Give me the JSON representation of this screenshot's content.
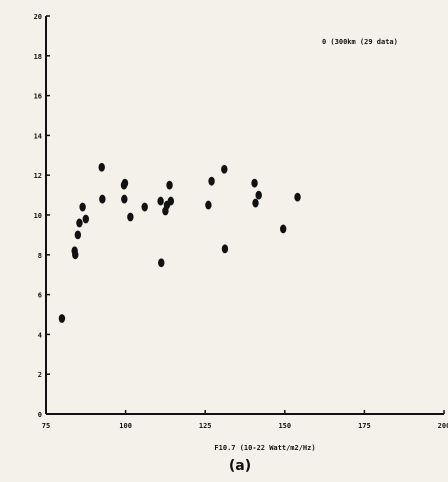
{
  "chart_data": {
    "type": "scatter",
    "title": "",
    "panel_label": "(a)",
    "xlabel": "F10.7 (10-22 Watt/m2/Hz)",
    "ylabel": "",
    "xlim": [
      75,
      200
    ],
    "ylim": [
      0,
      20
    ],
    "x_ticks": [
      "75",
      "100",
      "125",
      "150",
      "175",
      "200"
    ],
    "y_ticks": [
      "0",
      "2",
      "4",
      "6",
      "8",
      "10",
      "12",
      "14",
      "16",
      "18",
      "20"
    ],
    "grid": false,
    "legend_position": "top-right",
    "series": [
      {
        "name": "0 (300km (29 data)",
        "color": "#111111",
        "points": [
          [
            80,
            4.8
          ],
          [
            84,
            8.2
          ],
          [
            84.2,
            8.0
          ],
          [
            85,
            9.0
          ],
          [
            85.5,
            9.6
          ],
          [
            86.5,
            10.4
          ],
          [
            87.5,
            9.8
          ],
          [
            92.5,
            12.4
          ],
          [
            92.7,
            10.8
          ],
          [
            99.5,
            11.5
          ],
          [
            99.8,
            11.6
          ],
          [
            99.6,
            10.8
          ],
          [
            101.5,
            9.9
          ],
          [
            106,
            10.4
          ],
          [
            111,
            10.7
          ],
          [
            111.2,
            7.6
          ],
          [
            112.5,
            10.2
          ],
          [
            113,
            10.5
          ],
          [
            113.8,
            11.5
          ],
          [
            114.2,
            10.7
          ],
          [
            126,
            10.5
          ],
          [
            127,
            11.7
          ],
          [
            131,
            12.3
          ],
          [
            131.2,
            8.3
          ],
          [
            140.5,
            11.6
          ],
          [
            140.8,
            10.6
          ],
          [
            141.8,
            11.0
          ],
          [
            149.5,
            9.3
          ],
          [
            154,
            10.9
          ]
        ]
      }
    ]
  }
}
